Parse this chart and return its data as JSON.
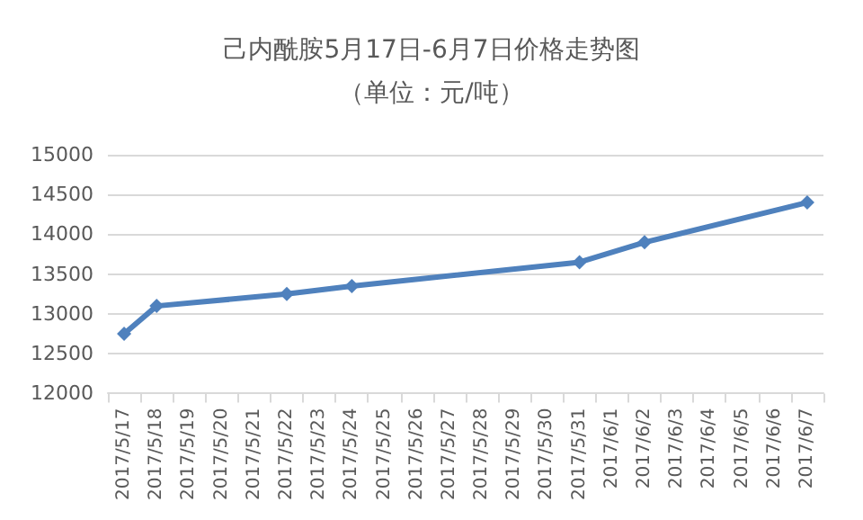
{
  "chart_data": {
    "type": "line",
    "title": "己内酰胺5月17日-6月7日价格走势图",
    "subtitle": "（单位：元/吨）",
    "categories": [
      "2017/5/17",
      "2017/5/18",
      "2017/5/19",
      "2017/5/20",
      "2017/5/21",
      "2017/5/22",
      "2017/5/23",
      "2017/5/24",
      "2017/5/25",
      "2017/5/26",
      "2017/5/27",
      "2017/5/28",
      "2017/5/29",
      "2017/5/30",
      "2017/5/31",
      "2017/6/1",
      "2017/6/2",
      "2017/6/3",
      "2017/6/4",
      "2017/6/5",
      "2017/6/6",
      "2017/6/7"
    ],
    "series": [
      {
        "color": "#4f81bd",
        "x": [
          "2017/5/17",
          "2017/5/18",
          "2017/5/22",
          "2017/5/24",
          "2017/5/31",
          "2017/6/2",
          "2017/6/7"
        ],
        "values": [
          12750,
          13100,
          13250,
          13350,
          13650,
          13900,
          14400
        ]
      }
    ],
    "ylim": [
      12000,
      15000
    ],
    "yticks": [
      12000,
      12500,
      13000,
      13500,
      14000,
      14500,
      15000
    ],
    "grid": "y",
    "marker": "diamond",
    "line_style": "solid"
  }
}
